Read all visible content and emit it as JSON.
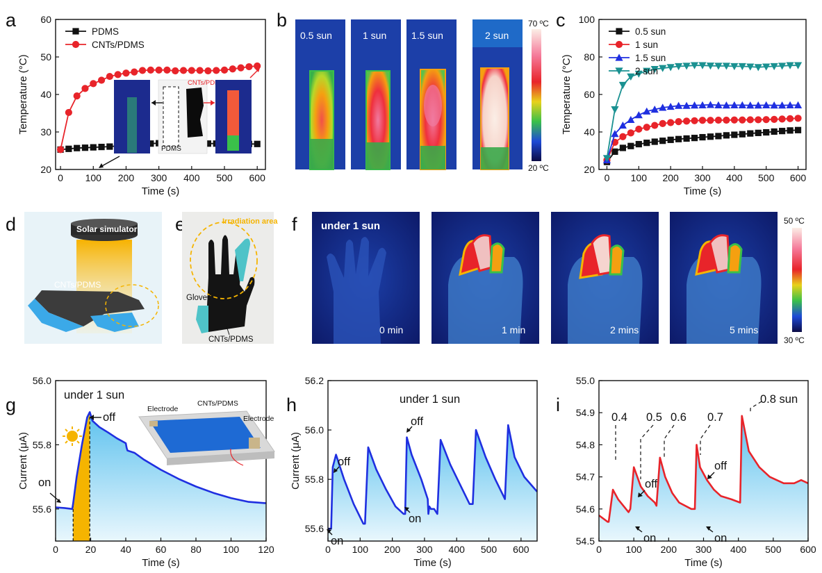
{
  "panel_letters": {
    "a": "a",
    "b": "b",
    "c": "c",
    "d": "d",
    "e": "e",
    "f": "f",
    "g": "g",
    "h": "h",
    "i": "i"
  },
  "panel_a": {
    "inset_labels": {
      "cnts": "CNTs/PDMS",
      "pdms": "PDMS"
    }
  },
  "panel_b": {
    "labels": [
      "0.5 sun",
      "1 sun",
      "1.5 sun",
      "2 sun"
    ],
    "scale_max": "70 ºC",
    "scale_min": "20 ºC"
  },
  "panel_d": {
    "simulator": "Solar simulator",
    "material": "CNTs/PDMS"
  },
  "panel_e": {
    "irradiation": "Irradiation area",
    "gloves": "Gloves",
    "material": "CNTs/PDMS"
  },
  "panel_f": {
    "condition": "under 1 sun",
    "times": [
      "0 min",
      "1 min",
      "2 mins",
      "5 mins"
    ],
    "scale_max": "50 ºC",
    "scale_min": "30 ºC"
  },
  "panel_g": {
    "condition": "under 1 sun",
    "on": "on",
    "off": "off",
    "inset": {
      "electrode": "Electrode",
      "material": "CNTs/PDMS"
    }
  },
  "panel_h": {
    "condition": "under 1 sun",
    "on": "on",
    "off": "off"
  },
  "panel_i": {
    "intensities": [
      "0.4",
      "0.5",
      "0.6",
      "0.7",
      "0.8 sun"
    ],
    "on": "on",
    "off": "off"
  },
  "colors": {
    "red": "#e8242a",
    "blue": "#1f2fe0",
    "teal": "#1a9191",
    "black": "#111111",
    "fill_blue": "#7fd0f2",
    "fill_orange": "#f5b400"
  },
  "chart_data": [
    {
      "id": "a",
      "type": "line",
      "xlabel": "Time (s)",
      "ylabel": "Temperature (°C)",
      "xlim": [
        -15,
        625
      ],
      "ylim": [
        20,
        60
      ],
      "xticks": [
        0,
        100,
        200,
        300,
        400,
        500,
        600
      ],
      "yticks": [
        20,
        30,
        40,
        50,
        60
      ],
      "legend_position": "top-left",
      "series": [
        {
          "name": "PDMS",
          "color": "#111111",
          "marker": "square",
          "x": [
            0,
            25,
            50,
            75,
            100,
            125,
            150,
            175,
            200,
            225,
            250,
            275,
            300,
            325,
            350,
            375,
            400,
            425,
            450,
            475,
            500,
            525,
            550,
            575,
            600
          ],
          "y": [
            25.3,
            25.5,
            25.7,
            25.8,
            25.9,
            26.0,
            26.1,
            26.3,
            26.5,
            26.6,
            26.8,
            26.9,
            27.0,
            27.0,
            27.0,
            27.0,
            27.0,
            27.0,
            26.9,
            26.9,
            26.9,
            26.9,
            26.8,
            26.8,
            26.8
          ]
        },
        {
          "name": "CNTs/PDMS",
          "color": "#e8242a",
          "marker": "circle",
          "x": [
            0,
            25,
            50,
            75,
            100,
            125,
            150,
            175,
            200,
            225,
            250,
            275,
            300,
            325,
            350,
            375,
            400,
            425,
            450,
            475,
            500,
            525,
            550,
            575,
            600
          ],
          "y": [
            25.3,
            35.2,
            39.6,
            41.6,
            42.9,
            43.8,
            44.8,
            45.3,
            45.7,
            46.0,
            46.4,
            46.5,
            46.5,
            46.5,
            46.3,
            46.4,
            46.4,
            46.4,
            46.3,
            46.4,
            46.5,
            46.8,
            47.1,
            47.4,
            47.6
          ]
        }
      ]
    },
    {
      "id": "c",
      "type": "line",
      "xlabel": "Time (s)",
      "ylabel": "Temperature (°C)",
      "xlim": [
        -25,
        625
      ],
      "ylim": [
        20,
        100
      ],
      "xticks": [
        0,
        100,
        200,
        300,
        400,
        500,
        600
      ],
      "yticks": [
        20,
        40,
        60,
        80,
        100
      ],
      "legend_position": "top-left",
      "series": [
        {
          "name": "0.5 sun",
          "color": "#111111",
          "marker": "square",
          "x": [
            0,
            25,
            50,
            75,
            100,
            125,
            150,
            175,
            200,
            225,
            250,
            275,
            300,
            325,
            350,
            375,
            400,
            425,
            450,
            475,
            500,
            525,
            550,
            575,
            600
          ],
          "y": [
            24,
            29.5,
            31.5,
            32.5,
            33.5,
            34.2,
            34.8,
            35.3,
            35.8,
            36.2,
            36.5,
            36.8,
            37.2,
            37.5,
            37.8,
            38.2,
            38.5,
            38.8,
            39.2,
            39.5,
            39.8,
            40.2,
            40.5,
            40.8,
            41
          ]
        },
        {
          "name": "1 sun",
          "color": "#e8242a",
          "marker": "circle",
          "x": [
            0,
            25,
            50,
            75,
            100,
            125,
            150,
            175,
            200,
            225,
            250,
            275,
            300,
            325,
            350,
            375,
            400,
            425,
            450,
            475,
            500,
            525,
            550,
            575,
            600
          ],
          "y": [
            25,
            34.5,
            37.5,
            39.5,
            41.5,
            42.5,
            43.5,
            44.5,
            45,
            45.5,
            45.8,
            46,
            46.2,
            46.2,
            46.3,
            46.3,
            46.4,
            46.4,
            46.5,
            46.5,
            46.6,
            46.7,
            46.9,
            47.1,
            47.3
          ]
        },
        {
          "name": "1.5 sun",
          "color": "#1f2fe0",
          "marker": "triangle-up",
          "x": [
            0,
            25,
            50,
            75,
            100,
            125,
            150,
            175,
            200,
            225,
            250,
            275,
            300,
            325,
            350,
            375,
            400,
            425,
            450,
            475,
            500,
            525,
            550,
            575,
            600
          ],
          "y": [
            25,
            39,
            43.5,
            46.5,
            49,
            51,
            52,
            53,
            53.5,
            54,
            54,
            54.2,
            54.3,
            54.5,
            54.3,
            54.2,
            54.3,
            54.3,
            54.2,
            54.2,
            54.3,
            54.2,
            54.2,
            54.3,
            54.3
          ]
        },
        {
          "name": "2 sun",
          "color": "#1a9191",
          "marker": "triangle-down",
          "x": [
            0,
            25,
            50,
            75,
            100,
            125,
            150,
            175,
            200,
            225,
            250,
            275,
            300,
            325,
            350,
            375,
            400,
            425,
            450,
            475,
            500,
            525,
            550,
            575,
            600
          ],
          "y": [
            26,
            52,
            65,
            69.5,
            71,
            72.5,
            73.5,
            74,
            74.5,
            75,
            75.2,
            75.5,
            75.5,
            75.3,
            75.2,
            75.2,
            75,
            75,
            74.8,
            74.5,
            74.8,
            75,
            75.2,
            75.5,
            75.5
          ]
        }
      ]
    },
    {
      "id": "g",
      "type": "area",
      "xlabel": "Time (s)",
      "ylabel": "Current (μA)",
      "xlim": [
        0,
        120
      ],
      "ylim": [
        55.5,
        56.0
      ],
      "xticks": [
        0,
        20,
        40,
        60,
        80,
        100,
        120
      ],
      "yticks": [
        55.6,
        55.8,
        56.0
      ],
      "x": [
        0,
        5,
        9.5,
        10,
        12,
        15,
        18,
        19.5,
        21,
        25,
        30,
        35,
        40,
        40.5,
        41,
        45,
        50,
        60,
        70,
        80,
        90,
        100,
        110,
        120
      ],
      "y": [
        55.605,
        55.603,
        55.6,
        55.618,
        55.7,
        55.8,
        55.885,
        55.902,
        55.875,
        55.855,
        55.838,
        55.82,
        55.805,
        55.79,
        55.782,
        55.775,
        55.755,
        55.722,
        55.694,
        55.67,
        55.65,
        55.634,
        55.622,
        55.618
      ]
    },
    {
      "id": "h",
      "type": "area",
      "xlabel": "Time (s)",
      "ylabel": "Current (μA)",
      "xlim": [
        0,
        650
      ],
      "ylim": [
        55.55,
        56.2
      ],
      "xticks": [
        0,
        100,
        200,
        300,
        400,
        500,
        600
      ],
      "yticks": [
        55.6,
        55.8,
        56.0,
        56.2
      ],
      "x": [
        0,
        10,
        15,
        25,
        50,
        80,
        110,
        115,
        125,
        150,
        180,
        210,
        235,
        240,
        245,
        260,
        290,
        310,
        312,
        315,
        320,
        330,
        340,
        350,
        380,
        410,
        440,
        450,
        460,
        490,
        520,
        550,
        560,
        580,
        610,
        650
      ],
      "y": [
        55.6,
        55.6,
        55.85,
        55.9,
        55.8,
        55.7,
        55.62,
        55.62,
        55.93,
        55.84,
        55.76,
        55.69,
        55.66,
        55.66,
        55.97,
        55.9,
        55.8,
        55.72,
        55.66,
        55.69,
        55.68,
        55.68,
        55.66,
        55.96,
        55.86,
        55.78,
        55.7,
        55.7,
        56.0,
        55.89,
        55.8,
        55.72,
        56.02,
        55.89,
        55.81,
        55.75
      ]
    },
    {
      "id": "i",
      "type": "area",
      "xlabel": "Time (s)",
      "ylabel": "",
      "xlim": [
        0,
        600
      ],
      "ylim": [
        54.5,
        55.0
      ],
      "xticks": [
        0,
        100,
        200,
        300,
        400,
        500,
        600
      ],
      "yticks": [
        54.5,
        54.6,
        54.7,
        54.8,
        54.9,
        55.0
      ],
      "x": [
        0,
        25,
        28,
        40,
        55,
        70,
        85,
        90,
        100,
        120,
        140,
        160,
        165,
        175,
        190,
        210,
        230,
        265,
        275,
        280,
        290,
        310,
        330,
        350,
        380,
        405,
        410,
        430,
        460,
        490,
        510,
        530,
        560,
        580,
        600
      ],
      "y": [
        54.58,
        54.56,
        54.56,
        54.66,
        54.63,
        54.61,
        54.59,
        54.6,
        54.73,
        54.67,
        54.64,
        54.62,
        54.61,
        54.76,
        54.7,
        54.65,
        54.62,
        54.6,
        54.6,
        54.8,
        54.73,
        54.69,
        54.66,
        54.64,
        54.63,
        54.62,
        54.89,
        54.78,
        54.73,
        54.7,
        54.69,
        54.68,
        54.68,
        54.69,
        54.68
      ]
    }
  ]
}
